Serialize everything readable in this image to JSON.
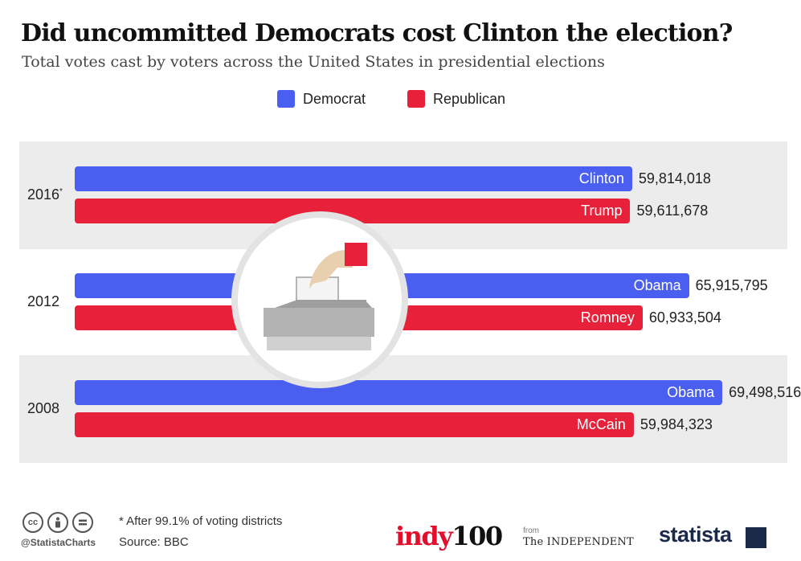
{
  "chart_data": {
    "type": "bar",
    "orientation": "horizontal",
    "title": "Did uncommitted Democrats cost Clinton the election?",
    "subtitle": "Total votes cast by voters across the United States in presidential elections",
    "legend": [
      {
        "name": "Democrat",
        "color": "#4a5ff0"
      },
      {
        "name": "Republican",
        "color": "#e8213a"
      }
    ],
    "xlim": [
      0,
      75000000
    ],
    "groups": [
      {
        "year": "2016",
        "marker": "*",
        "bars": [
          {
            "party": "Democrat",
            "candidate": "Clinton",
            "value": 59814018,
            "value_label": "59,814,018"
          },
          {
            "party": "Republican",
            "candidate": "Trump",
            "value": 59611678,
            "value_label": "59,611,678"
          }
        ]
      },
      {
        "year": "2012",
        "marker": "",
        "bars": [
          {
            "party": "Democrat",
            "candidate": "Obama",
            "value": 65915795,
            "value_label": "65,915,795"
          },
          {
            "party": "Republican",
            "candidate": "Romney",
            "value": 60933504,
            "value_label": "60,933,504"
          }
        ]
      },
      {
        "year": "2008",
        "marker": "",
        "bars": [
          {
            "party": "Democrat",
            "candidate": "Obama",
            "value": 69498516,
            "value_label": "69,498,516"
          },
          {
            "party": "Republican",
            "candidate": "McCain",
            "value": 59984323,
            "value_label": "59,984,323"
          }
        ]
      }
    ]
  },
  "footer": {
    "note": "* After 99.1% of voting districts",
    "source": "Source: BBC",
    "handle": "@StatistaCharts"
  },
  "logos": {
    "indy_a": "indy",
    "indy_b": "100",
    "from": "from",
    "independent": "The INDEPENDENT",
    "statista": "statista"
  },
  "icons": [
    "creative-commons-icon",
    "attribution-icon",
    "no-derivatives-icon",
    "ballot-box-icon"
  ]
}
